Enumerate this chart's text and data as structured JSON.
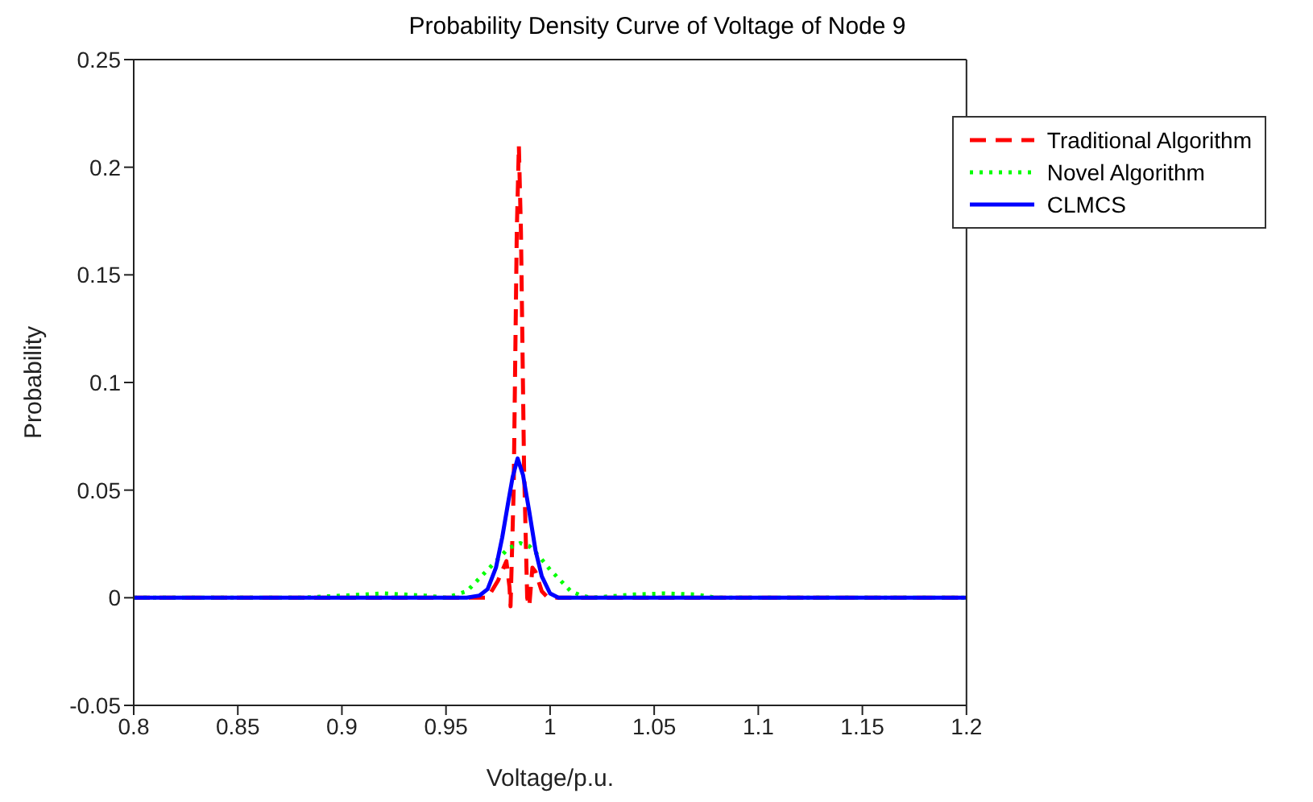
{
  "chart_data": {
    "type": "line",
    "title": "Probability Density Curve of Voltage of Node 9",
    "xlabel": "Voltage/p.u.",
    "ylabel": "Probability",
    "xlim": [
      0.8,
      1.2
    ],
    "xticks": [
      0.8,
      0.85,
      0.9,
      0.95,
      1,
      1.05,
      1.1,
      1.15,
      1.2
    ],
    "ylim": [
      -0.05,
      0.25
    ],
    "yticks": [
      -0.05,
      0,
      0.05,
      0.1,
      0.15,
      0.2,
      0.25
    ],
    "grid": false,
    "legend": "top right",
    "marker": "none",
    "series": [
      {
        "name": "Traditional Algorithm",
        "color": "#ff0000",
        "line_style": "dashed",
        "x": [
          0.8,
          0.97,
          0.975,
          0.979,
          0.9805,
          0.981,
          0.9825,
          0.984,
          0.985,
          0.986,
          0.9875,
          0.989,
          0.99,
          0.9915,
          0.993,
          0.996,
          0.999,
          1.2
        ],
        "values": [
          0,
          0,
          0.008,
          0.017,
          0.005,
          -0.004,
          0.05,
          0.17,
          0.21,
          0.17,
          0.06,
          0,
          -0.004,
          0.014,
          0.012,
          0.003,
          0,
          0
        ]
      },
      {
        "name": "Novel Algorithm",
        "color": "#00ff00",
        "line_style": "dotted",
        "x": [
          0.8,
          0.88,
          0.9,
          0.92,
          0.94,
          0.95,
          0.96,
          0.965,
          0.97,
          0.975,
          0.98,
          0.9856,
          0.99,
          0.995,
          1.0,
          1.005,
          1.01,
          1.015,
          1.02,
          1.04,
          1.055,
          1.07,
          1.08,
          1.2
        ],
        "values": [
          0,
          0,
          0.001,
          0.002,
          0.001,
          0,
          0.003,
          0.008,
          0.013,
          0.018,
          0.023,
          0.0254,
          0.024,
          0.019,
          0.013,
          0.008,
          0.003,
          0.001,
          0,
          0.0015,
          0.002,
          0.0015,
          0,
          0
        ]
      },
      {
        "name": "CLMCS",
        "color": "#0000ff",
        "line_style": "solid",
        "x": [
          0.8,
          0.96,
          0.966,
          0.97,
          0.974,
          0.977,
          0.98,
          0.982,
          0.9844,
          0.987,
          0.99,
          0.993,
          0.996,
          1.0,
          1.004,
          1.2
        ],
        "values": [
          0,
          0,
          0.001,
          0.004,
          0.014,
          0.028,
          0.045,
          0.056,
          0.0647,
          0.057,
          0.04,
          0.022,
          0.01,
          0.002,
          0,
          0
        ]
      }
    ]
  }
}
